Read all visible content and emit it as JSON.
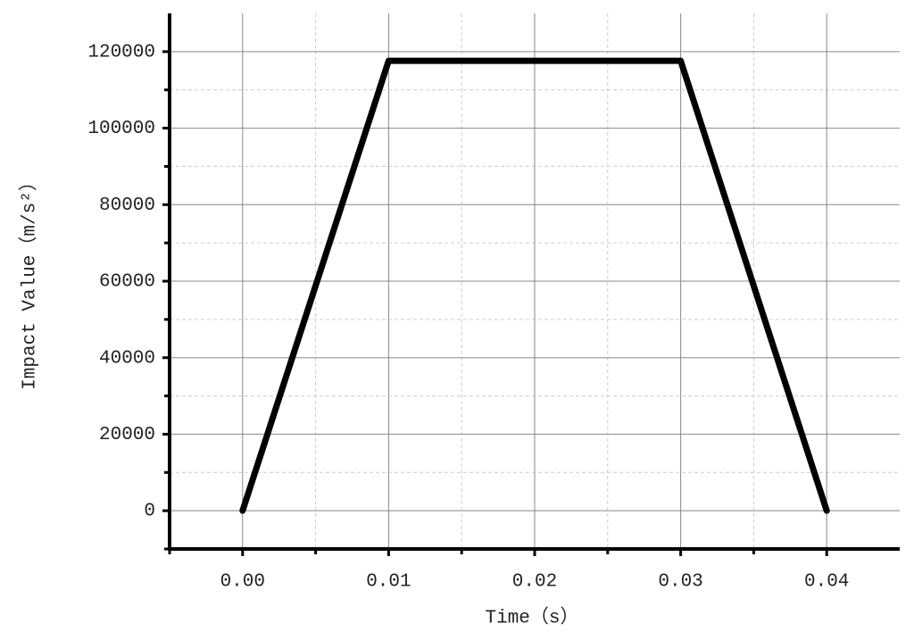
{
  "chart_data": {
    "type": "line",
    "x_label": "Time（s）",
    "y_label": "Impact Value（m/s²）",
    "x": [
      0,
      0.01,
      0.03,
      0.04
    ],
    "series": [
      {
        "color": "#000000",
        "values": [
          0,
          117600,
          117600,
          0
        ]
      }
    ],
    "xlim": [
      -0.005,
      0.045
    ],
    "ylim": [
      -10000,
      130000
    ],
    "xticks": [
      {
        "value": 0,
        "label": "0.00"
      },
      0.01,
      0.02,
      0.03,
      0.04
    ],
    "yticks": [
      0,
      20000,
      40000,
      60000,
      80000,
      100000,
      120000
    ],
    "grid": true
  }
}
